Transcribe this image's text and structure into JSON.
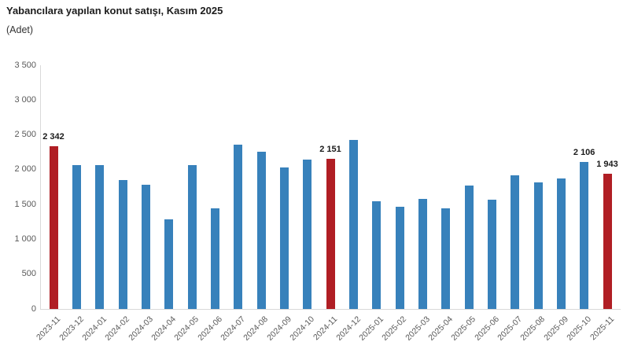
{
  "header": {
    "title": "Yabancılara yapılan konut satışı, Kasım 2025",
    "subtitle": "(Adet)"
  },
  "chart_data": {
    "type": "bar",
    "title": "Yabancılara yapılan konut satışı, Kasım 2025",
    "unit_label": "(Adet)",
    "xlabel": "",
    "ylabel": "Adet",
    "ylim": [
      0,
      3500
    ],
    "grid": "off",
    "legend": "none",
    "categories": [
      "2023-11",
      "2023-12",
      "2024-01",
      "2024-02",
      "2024-03",
      "2024-04",
      "2024-05",
      "2024-06",
      "2024-07",
      "2024-08",
      "2024-09",
      "2024-10",
      "2024-11",
      "2024-12",
      "2025-01",
      "2025-02",
      "2025-03",
      "2025-04",
      "2025-05",
      "2025-06",
      "2025-07",
      "2025-08",
      "2025-09",
      "2025-10",
      "2025-11"
    ],
    "values": [
      2342,
      2070,
      2065,
      1855,
      1785,
      1285,
      2065,
      1445,
      2355,
      2260,
      2035,
      2140,
      2151,
      2425,
      1550,
      1465,
      1575,
      1445,
      1775,
      1565,
      1915,
      1815,
      1870,
      2106,
      1943
    ],
    "highlight_indices": [
      0,
      12,
      24
    ],
    "data_labels": {
      "0": "2 342",
      "12": "2 151",
      "23": "2 106",
      "24": "1 943"
    },
    "yticks": [
      {
        "value": 0,
        "label": "0"
      },
      {
        "value": 500,
        "label": "500"
      },
      {
        "value": 1000,
        "label": "1 000"
      },
      {
        "value": 1500,
        "label": "1 500"
      },
      {
        "value": 2000,
        "label": "2 000"
      },
      {
        "value": 2500,
        "label": "2 500"
      },
      {
        "value": 3000,
        "label": "3 000"
      },
      {
        "value": 3500,
        "label": "3 500"
      }
    ],
    "colors": {
      "bar": "#3781bb",
      "highlight": "#b01e24",
      "axis_line": "#d9d9d9",
      "tick_label": "#595959",
      "data_label": "#1a1a1a"
    }
  }
}
